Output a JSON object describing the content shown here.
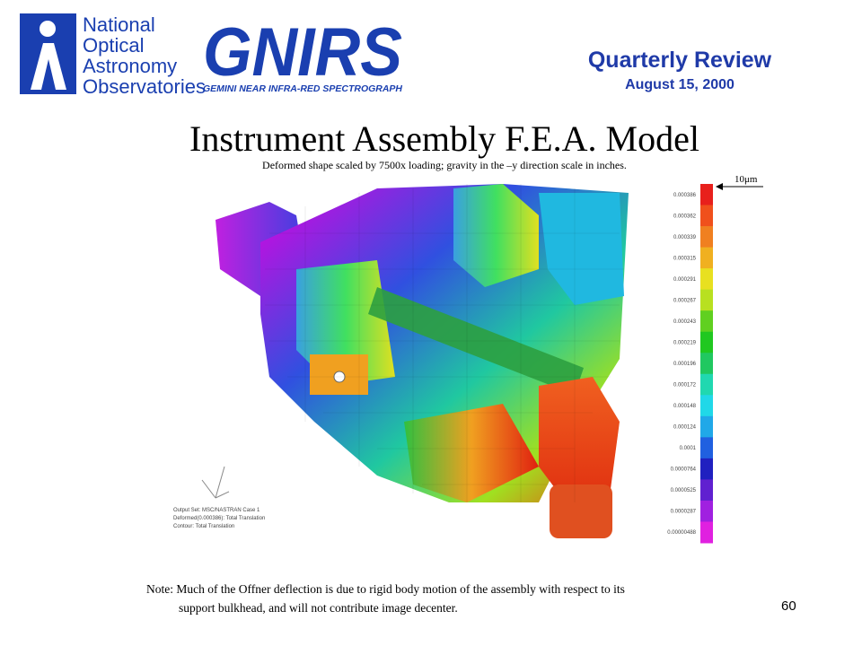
{
  "header": {
    "logo_lines": [
      "National",
      "Optical",
      "Astronomy",
      "Observatories"
    ],
    "instrument": "GNIRS",
    "instrument_subtitle": "GEMINI NEAR INFRA-RED SPECTROGRAPH",
    "review": "Quarterly Review",
    "date": "August 15, 2000"
  },
  "title": "Instrument Assembly F.E.A. Model",
  "subtitle": "Deformed shape scaled by 7500x loading; gravity in the –y direction scale in inches.",
  "scale_marker": "10μm",
  "colorbar": {
    "labels": [
      "0.000386",
      "0.000362",
      "0.000339",
      "0.000315",
      "0.000291",
      "0.000267",
      "0.000243",
      "0.000219",
      "0.000196",
      "0.000172",
      "0.000148",
      "0.000124",
      "0.0001",
      "0.0000764",
      "0.0000525",
      "0.0000287",
      "0.00000488"
    ]
  },
  "model_legend": [
    "Output Set: MSC/NASTRAN Case 1",
    "Deformed(0.000386): Total Translation",
    "Contour: Total Translation"
  ],
  "note": [
    "Note: Much of the Offner deflection is due to rigid body motion of the assembly with respect to its",
    "support bulkhead, and will not contribute image decenter."
  ],
  "page_number": "60"
}
